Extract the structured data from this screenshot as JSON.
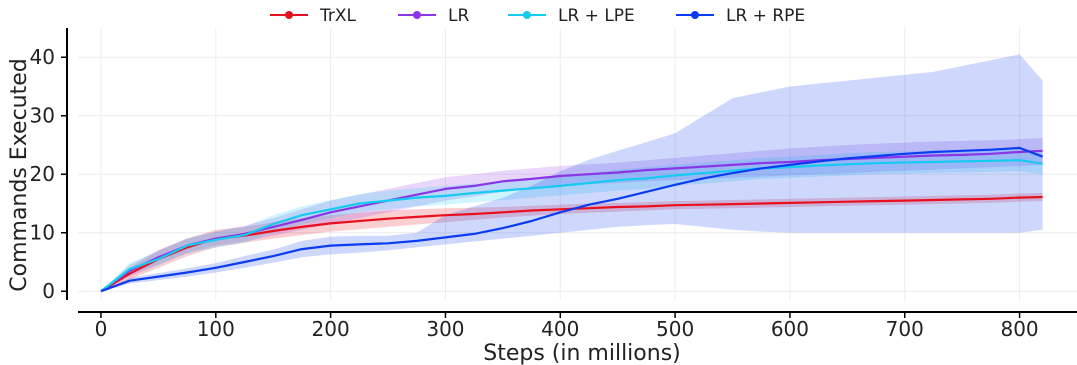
{
  "chart_data": {
    "type": "line",
    "xlabel": "Steps (in millions)",
    "ylabel": "Commands Executed",
    "xlim": [
      -20,
      850
    ],
    "ylim": [
      -1.5,
      45
    ],
    "x_ticks": [
      0,
      100,
      200,
      300,
      400,
      500,
      600,
      700,
      800
    ],
    "y_ticks": [
      0,
      10,
      20,
      30,
      40
    ],
    "x_tick_labels": [
      "0",
      "100",
      "200",
      "300",
      "400",
      "500",
      "600",
      "700",
      "800"
    ],
    "y_tick_labels": [
      "0",
      "10",
      "20",
      "30",
      "40"
    ],
    "grid": true,
    "legend_position": "top",
    "x": [
      0,
      25,
      50,
      75,
      100,
      125,
      150,
      175,
      200,
      225,
      250,
      275,
      300,
      325,
      350,
      375,
      400,
      425,
      450,
      475,
      500,
      525,
      550,
      575,
      600,
      625,
      650,
      675,
      700,
      725,
      750,
      775,
      800,
      820
    ],
    "series": [
      {
        "name": "TrXL",
        "color": "#e8101e",
        "values": [
          0,
          3.0,
          5.5,
          7.5,
          9.0,
          9.5,
          10.3,
          11.0,
          11.6,
          12.0,
          12.4,
          12.7,
          13.0,
          13.2,
          13.5,
          13.8,
          14.0,
          14.2,
          14.4,
          14.5,
          14.7,
          14.8,
          14.9,
          15.0,
          15.1,
          15.2,
          15.3,
          15.4,
          15.5,
          15.6,
          15.7,
          15.8,
          16.0,
          16.1
        ],
        "lower": [
          0,
          2.0,
          4.0,
          6.0,
          7.5,
          8.3,
          9.0,
          9.6,
          10.2,
          10.6,
          11.0,
          11.4,
          11.8,
          12.2,
          12.6,
          12.9,
          13.2,
          13.4,
          13.6,
          13.8,
          14.0,
          14.1,
          14.2,
          14.3,
          14.4,
          14.5,
          14.6,
          14.7,
          14.8,
          14.9,
          15.0,
          15.1,
          15.3,
          15.4
        ],
        "upper": [
          0,
          4.0,
          7.0,
          9.0,
          10.5,
          11.0,
          11.8,
          12.5,
          13.0,
          13.4,
          13.8,
          14.0,
          14.2,
          14.3,
          14.4,
          14.6,
          14.8,
          15.0,
          15.1,
          15.2,
          15.4,
          15.5,
          15.6,
          15.7,
          15.8,
          15.9,
          16.0,
          16.1,
          16.2,
          16.3,
          16.4,
          16.5,
          16.7,
          16.8
        ]
      },
      {
        "name": "LR",
        "color": "#8a35e6",
        "values": [
          0,
          3.5,
          5.8,
          7.8,
          9.0,
          9.8,
          11.0,
          12.2,
          13.5,
          14.5,
          15.5,
          16.5,
          17.5,
          18.0,
          18.8,
          19.2,
          19.7,
          20.0,
          20.3,
          20.7,
          21.0,
          21.3,
          21.6,
          21.9,
          22.1,
          22.4,
          22.6,
          22.8,
          23.0,
          23.2,
          23.3,
          23.5,
          23.8,
          24.0
        ],
        "lower": [
          0,
          2.5,
          4.5,
          6.5,
          7.8,
          8.5,
          9.5,
          10.5,
          11.5,
          12.5,
          13.5,
          14.5,
          15.5,
          16.2,
          17.0,
          17.5,
          18.0,
          18.3,
          18.5,
          18.8,
          19.0,
          19.2,
          19.4,
          19.6,
          19.8,
          20.0,
          20.2,
          20.4,
          20.6,
          20.8,
          21.0,
          21.2,
          21.4,
          21.6
        ],
        "upper": [
          0,
          4.5,
          7.0,
          9.0,
          10.2,
          11.2,
          12.5,
          14.0,
          15.5,
          16.5,
          17.5,
          18.5,
          19.5,
          20.0,
          20.6,
          21.0,
          21.4,
          21.7,
          22.0,
          22.4,
          22.8,
          23.2,
          23.6,
          24.0,
          24.4,
          24.7,
          25.0,
          25.2,
          25.4,
          25.6,
          25.7,
          25.8,
          26.0,
          26.2
        ]
      },
      {
        "name": "LR + LPE",
        "color": "#15cbf0",
        "values": [
          0,
          3.8,
          5.5,
          7.8,
          8.8,
          9.6,
          11.5,
          13.0,
          14.0,
          15.0,
          15.5,
          16.0,
          16.3,
          16.8,
          17.2,
          17.6,
          18.0,
          18.5,
          19.0,
          19.3,
          19.8,
          20.2,
          20.6,
          21.0,
          21.2,
          21.5,
          21.7,
          21.9,
          22.0,
          22.1,
          22.2,
          22.3,
          22.4,
          21.8
        ],
        "lower": [
          0,
          2.8,
          4.5,
          6.5,
          7.5,
          8.3,
          10.0,
          11.5,
          12.5,
          13.5,
          14.0,
          14.5,
          14.8,
          15.2,
          15.6,
          16.0,
          16.4,
          16.8,
          17.2,
          17.5,
          18.0,
          18.4,
          18.8,
          19.2,
          19.4,
          19.6,
          19.8,
          20.0,
          20.1,
          20.2,
          20.3,
          20.4,
          20.5,
          20.0
        ],
        "upper": [
          0,
          4.8,
          6.8,
          9.0,
          10.2,
          11.0,
          13.0,
          14.5,
          15.6,
          16.6,
          17.2,
          17.6,
          18.0,
          18.4,
          18.8,
          19.2,
          19.6,
          20.2,
          20.8,
          21.2,
          21.6,
          22.0,
          22.4,
          22.8,
          23.0,
          23.3,
          23.6,
          23.8,
          23.9,
          24.0,
          24.1,
          24.2,
          24.3,
          23.6
        ]
      },
      {
        "name": "LR + RPE",
        "color": "#0b3cf2",
        "values": [
          0,
          1.8,
          2.5,
          3.2,
          4.0,
          5.0,
          6.0,
          7.2,
          7.8,
          8.0,
          8.2,
          8.6,
          9.2,
          9.8,
          10.8,
          12.0,
          13.5,
          14.8,
          15.8,
          17.0,
          18.2,
          19.3,
          20.2,
          21.0,
          21.6,
          22.2,
          22.7,
          23.1,
          23.5,
          23.8,
          24.0,
          24.2,
          24.5,
          23.0
        ],
        "lower": [
          0,
          1.3,
          1.9,
          2.5,
          3.2,
          4.0,
          4.9,
          5.8,
          6.3,
          6.6,
          7.0,
          7.5,
          8.0,
          8.5,
          9.0,
          9.5,
          10.0,
          10.5,
          11.0,
          11.3,
          11.5,
          11.0,
          10.5,
          10.2,
          10.0,
          10.0,
          10.0,
          10.0,
          10.0,
          10.0,
          10.0,
          10.0,
          10.0,
          10.5
        ],
        "upper": [
          0,
          2.3,
          3.1,
          3.9,
          4.8,
          6.0,
          7.1,
          8.6,
          9.3,
          9.5,
          9.5,
          10.0,
          13.0,
          14.5,
          16.0,
          18.0,
          20.5,
          22.5,
          24.0,
          25.5,
          27.0,
          30.0,
          33.0,
          34.0,
          35.0,
          35.5,
          36.0,
          36.5,
          37.0,
          37.5,
          38.5,
          39.5,
          40.5,
          36.0
        ]
      }
    ]
  }
}
